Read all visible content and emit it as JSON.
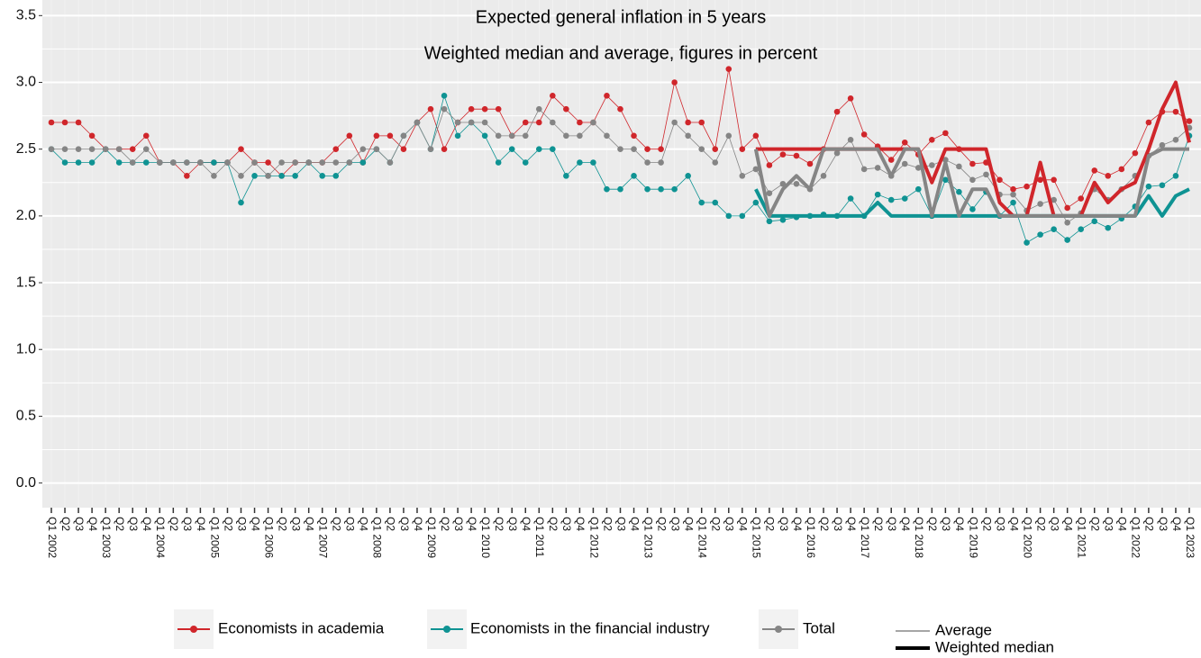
{
  "chart_data": {
    "type": "line",
    "title": "Expected general inflation in 5 years",
    "subtitle": "Weighted median and average, figures in percent",
    "categories": [
      "Q1 2002",
      "Q2",
      "Q3",
      "Q4",
      "Q1 2003",
      "Q2",
      "Q3",
      "Q4",
      "Q1 2004",
      "Q2",
      "Q3",
      "Q4",
      "Q1 2005",
      "Q2",
      "Q3",
      "Q4",
      "Q1 2006",
      "Q2",
      "Q3",
      "Q4",
      "Q1 2007",
      "Q2",
      "Q3",
      "Q4",
      "Q1 2008",
      "Q2",
      "Q3",
      "Q4",
      "Q1 2009",
      "Q2",
      "Q3",
      "Q4",
      "Q1 2010",
      "Q2",
      "Q3",
      "Q4",
      "Q1 2011",
      "Q2",
      "Q3",
      "Q4",
      "Q1 2012",
      "Q2",
      "Q3",
      "Q4",
      "Q1 2013",
      "Q2",
      "Q3",
      "Q4",
      "Q1 2014",
      "Q2",
      "Q3",
      "Q4",
      "Q1 2015",
      "Q2",
      "Q3",
      "Q4",
      "Q1 2016",
      "Q2",
      "Q3",
      "Q4",
      "Q1 2017",
      "Q2",
      "Q3",
      "Q4",
      "Q1 2018",
      "Q2",
      "Q3",
      "Q4",
      "Q1 2019",
      "Q2",
      "Q3",
      "Q4",
      "Q1 2020",
      "Q2",
      "Q3",
      "Q4",
      "Q1 2021",
      "Q2",
      "Q3",
      "Q4",
      "Q1 2022",
      "Q2",
      "Q3",
      "Q4",
      "Q1 2023"
    ],
    "series": [
      {
        "name": "Economists in academia",
        "color": "#d0262b",
        "average": [
          2.7,
          2.7,
          2.7,
          2.6,
          2.5,
          2.5,
          2.5,
          2.6,
          2.4,
          2.4,
          2.3,
          2.4,
          2.4,
          2.4,
          2.5,
          2.4,
          2.4,
          2.3,
          2.4,
          2.4,
          2.4,
          2.5,
          2.6,
          2.4,
          2.6,
          2.6,
          2.5,
          2.7,
          2.8,
          2.5,
          2.7,
          2.8,
          2.8,
          2.8,
          2.6,
          2.7,
          2.7,
          2.9,
          2.8,
          2.7,
          2.7,
          2.9,
          2.8,
          2.6,
          2.5,
          2.5,
          3.0,
          2.7,
          2.7,
          2.5,
          3.1,
          2.5,
          2.6,
          2.38,
          2.46,
          2.45,
          2.39,
          2.5,
          2.78,
          2.88,
          2.61,
          2.52,
          2.42,
          2.55,
          2.46,
          2.57,
          2.62,
          2.5,
          2.39,
          2.4,
          2.27,
          2.2,
          2.22,
          2.27,
          2.27,
          2.06,
          2.13,
          2.34,
          2.3,
          2.35,
          2.47,
          2.7,
          2.78,
          2.78,
          2.71
        ],
        "weighted_median": [
          null,
          null,
          null,
          null,
          null,
          null,
          null,
          null,
          null,
          null,
          null,
          null,
          null,
          null,
          null,
          null,
          null,
          null,
          null,
          null,
          null,
          null,
          null,
          null,
          null,
          null,
          null,
          null,
          null,
          null,
          null,
          null,
          null,
          null,
          null,
          null,
          null,
          null,
          null,
          null,
          null,
          null,
          null,
          null,
          null,
          null,
          null,
          null,
          null,
          null,
          null,
          null,
          2.5,
          2.5,
          2.5,
          2.5,
          2.5,
          2.5,
          2.5,
          2.5,
          2.5,
          2.5,
          2.5,
          2.5,
          2.5,
          2.25,
          2.5,
          2.5,
          2.5,
          2.5,
          2.1,
          2.0,
          2.0,
          2.4,
          2.0,
          2.0,
          2.0,
          2.25,
          2.1,
          2.2,
          2.25,
          2.5,
          2.8,
          3.0,
          2.55
        ]
      },
      {
        "name": "Economists in the financial industry",
        "color": "#0f9393",
        "average": [
          2.5,
          2.4,
          2.4,
          2.4,
          2.5,
          2.4,
          2.4,
          2.4,
          2.4,
          2.4,
          2.4,
          2.4,
          2.4,
          2.4,
          2.1,
          2.3,
          2.3,
          2.3,
          2.3,
          2.4,
          2.3,
          2.3,
          2.4,
          2.4,
          2.5,
          2.4,
          2.6,
          2.7,
          2.5,
          2.9,
          2.6,
          2.7,
          2.6,
          2.4,
          2.5,
          2.4,
          2.5,
          2.5,
          2.3,
          2.4,
          2.4,
          2.2,
          2.2,
          2.3,
          2.2,
          2.2,
          2.2,
          2.3,
          2.1,
          2.1,
          2.0,
          2.0,
          2.1,
          1.96,
          1.97,
          1.99,
          2.0,
          2.01,
          2.0,
          2.13,
          2.0,
          2.16,
          2.12,
          2.13,
          2.2,
          2.0,
          2.27,
          2.18,
          2.05,
          2.18,
          2.0,
          2.1,
          1.8,
          1.86,
          1.9,
          1.82,
          1.9,
          1.96,
          1.91,
          1.98,
          2.07,
          2.22,
          2.23,
          2.3,
          2.6
        ],
        "weighted_median": [
          null,
          null,
          null,
          null,
          null,
          null,
          null,
          null,
          null,
          null,
          null,
          null,
          null,
          null,
          null,
          null,
          null,
          null,
          null,
          null,
          null,
          null,
          null,
          null,
          null,
          null,
          null,
          null,
          null,
          null,
          null,
          null,
          null,
          null,
          null,
          null,
          null,
          null,
          null,
          null,
          null,
          null,
          null,
          null,
          null,
          null,
          null,
          null,
          null,
          null,
          null,
          null,
          2.2,
          2.0,
          2.0,
          2.0,
          2.0,
          2.0,
          2.0,
          2.0,
          2.0,
          2.1,
          2.0,
          2.0,
          2.0,
          2.0,
          2.0,
          2.0,
          2.0,
          2.0,
          2.0,
          2.0,
          2.0,
          2.0,
          2.0,
          2.0,
          2.0,
          2.0,
          2.0,
          2.0,
          2.0,
          2.15,
          2.0,
          2.15,
          2.2
        ]
      },
      {
        "name": "Total",
        "color": "#858585",
        "average": [
          2.5,
          2.5,
          2.5,
          2.5,
          2.5,
          2.5,
          2.4,
          2.5,
          2.4,
          2.4,
          2.4,
          2.4,
          2.3,
          2.4,
          2.3,
          2.4,
          2.3,
          2.4,
          2.4,
          2.4,
          2.4,
          2.4,
          2.4,
          2.5,
          2.5,
          2.4,
          2.6,
          2.7,
          2.5,
          2.8,
          2.7,
          2.7,
          2.7,
          2.6,
          2.6,
          2.6,
          2.8,
          2.7,
          2.6,
          2.6,
          2.7,
          2.6,
          2.5,
          2.5,
          2.4,
          2.4,
          2.7,
          2.6,
          2.5,
          2.4,
          2.6,
          2.3,
          2.35,
          2.17,
          2.24,
          2.24,
          2.2,
          2.3,
          2.47,
          2.57,
          2.35,
          2.36,
          2.3,
          2.39,
          2.36,
          2.38,
          2.42,
          2.37,
          2.27,
          2.31,
          2.16,
          2.16,
          2.04,
          2.09,
          2.12,
          1.95,
          2.02,
          2.2,
          2.12,
          2.2,
          2.3,
          2.45,
          2.53,
          2.57,
          2.66
        ],
        "weighted_median": [
          null,
          null,
          null,
          null,
          null,
          null,
          null,
          null,
          null,
          null,
          null,
          null,
          null,
          null,
          null,
          null,
          null,
          null,
          null,
          null,
          null,
          null,
          null,
          null,
          null,
          null,
          null,
          null,
          null,
          null,
          null,
          null,
          null,
          null,
          null,
          null,
          null,
          null,
          null,
          null,
          null,
          null,
          null,
          null,
          null,
          null,
          null,
          null,
          null,
          null,
          null,
          null,
          2.5,
          2.0,
          2.2,
          2.3,
          2.2,
          2.5,
          2.5,
          2.5,
          2.5,
          2.5,
          2.3,
          2.5,
          2.5,
          2.0,
          2.4,
          2.0,
          2.2,
          2.2,
          2.0,
          2.0,
          2.0,
          2.0,
          2.0,
          2.0,
          2.0,
          2.0,
          2.0,
          2.0,
          2.0,
          2.45,
          2.5,
          2.5,
          2.5
        ]
      }
    ],
    "linetype_legend": [
      "Average",
      "Weighted median"
    ],
    "ylim": [
      -0.18,
      3.61
    ],
    "yticks": [
      {
        "value": 0,
        "label": "0.0"
      },
      0.5,
      {
        "value": 1,
        "label": "1.0"
      },
      1.5,
      {
        "value": 2,
        "label": "2.0"
      },
      2.5,
      {
        "value": 3,
        "label": "3.0"
      },
      3.5
    ],
    "grid": true
  }
}
